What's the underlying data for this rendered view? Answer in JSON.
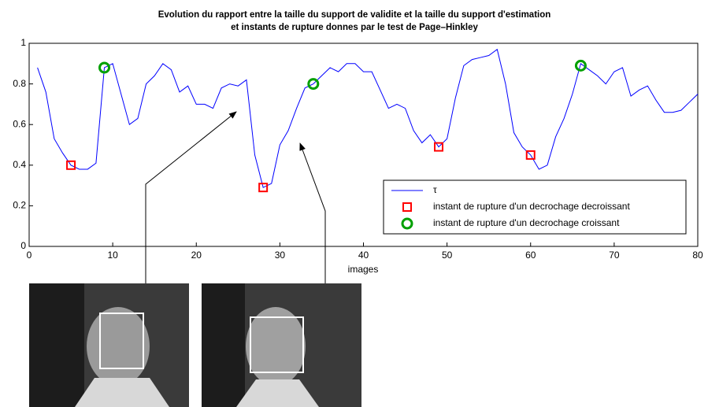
{
  "chart_data": {
    "type": "line",
    "title": [
      "Evolution du rapport entre la taille du support de validite et la taille du support d'estimation",
      "et instants de rupture donnes par le test de Page–Hinkley"
    ],
    "x_label": "images",
    "xlim": [
      0,
      80
    ],
    "xticks": [
      0,
      10,
      20,
      30,
      40,
      50,
      60,
      70,
      80
    ],
    "ylim": [
      0,
      1
    ],
    "yticks": [
      0,
      0.2,
      0.4,
      0.6,
      0.8,
      1
    ],
    "legend": "lower right",
    "series": [
      {
        "name": "τ",
        "color": "#0000ff",
        "marker": "none",
        "x": [
          1,
          2,
          3,
          4,
          5,
          6,
          7,
          8,
          9,
          10,
          11,
          12,
          13,
          14,
          15,
          16,
          17,
          18,
          19,
          20,
          21,
          22,
          23,
          24,
          25,
          26,
          27,
          28,
          29,
          30,
          31,
          32,
          33,
          34,
          35,
          36,
          37,
          38,
          39,
          40,
          41,
          42,
          43,
          44,
          45,
          46,
          47,
          48,
          49,
          50,
          51,
          52,
          53,
          54,
          55,
          56,
          57,
          58,
          59,
          60,
          61,
          62,
          63,
          64,
          65,
          66,
          67,
          68,
          69,
          70,
          71,
          72,
          73,
          74,
          75,
          76,
          77,
          78,
          79,
          80
        ],
        "values": [
          0.88,
          0.76,
          0.53,
          0.46,
          0.4,
          0.38,
          0.38,
          0.41,
          0.88,
          0.9,
          0.75,
          0.6,
          0.63,
          0.8,
          0.84,
          0.9,
          0.87,
          0.76,
          0.79,
          0.7,
          0.7,
          0.68,
          0.78,
          0.8,
          0.79,
          0.82,
          0.45,
          0.29,
          0.31,
          0.5,
          0.57,
          0.68,
          0.78,
          0.8,
          0.84,
          0.88,
          0.86,
          0.9,
          0.9,
          0.86,
          0.86,
          0.77,
          0.68,
          0.7,
          0.68,
          0.57,
          0.51,
          0.55,
          0.49,
          0.53,
          0.73,
          0.89,
          0.92,
          0.93,
          0.94,
          0.97,
          0.8,
          0.56,
          0.49,
          0.45,
          0.38,
          0.4,
          0.54,
          0.63,
          0.75,
          0.9,
          0.87,
          0.84,
          0.8,
          0.86,
          0.88,
          0.74,
          0.77,
          0.79,
          0.72,
          0.66,
          0.66,
          0.67,
          0.71,
          0.75
        ]
      },
      {
        "name": "instant de rupture d'un decrochage decroissant",
        "color": "#ff0000",
        "marker": "square",
        "x": [
          5,
          28,
          49,
          60
        ],
        "values": [
          0.4,
          0.29,
          0.49,
          0.45
        ]
      },
      {
        "name": "instant de rupture d'un decrochage croissant",
        "color": "#00a000",
        "marker": "circle",
        "x": [
          9,
          34,
          66
        ],
        "values": [
          0.88,
          0.8,
          0.89
        ]
      }
    ]
  }
}
